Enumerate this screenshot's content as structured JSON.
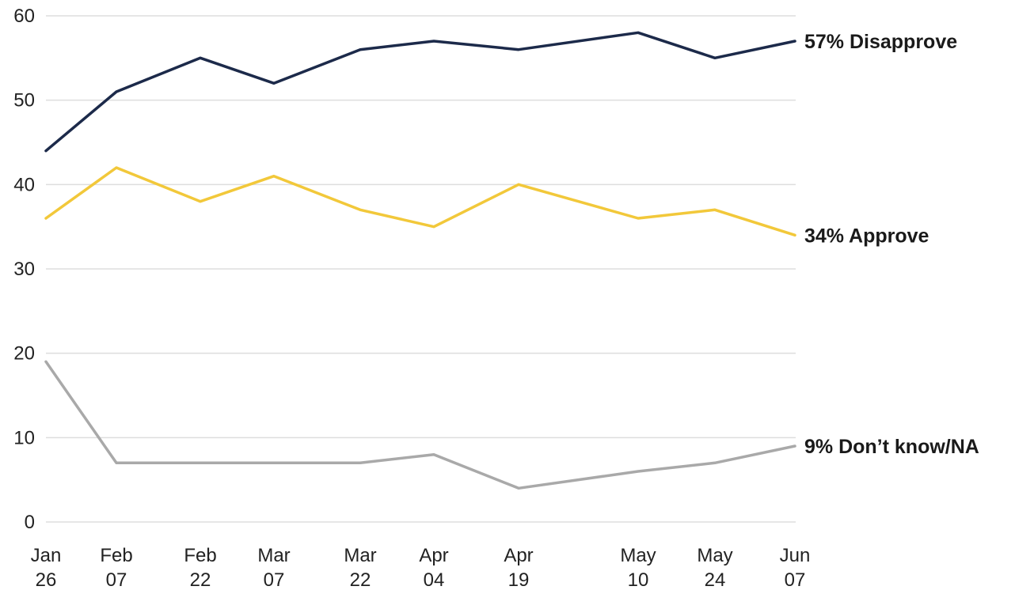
{
  "chart_data": {
    "type": "line",
    "categories": [
      [
        "Jan",
        "26"
      ],
      [
        "Feb",
        "07"
      ],
      [
        "Feb",
        "22"
      ],
      [
        "Mar",
        "07"
      ],
      [
        "Mar",
        "22"
      ],
      [
        "Apr",
        "04"
      ],
      [
        "Apr",
        "19"
      ],
      [
        "May",
        "10"
      ],
      [
        "May",
        "24"
      ],
      [
        "Jun",
        "07"
      ]
    ],
    "x": [
      "2025-01-26",
      "2025-02-07",
      "2025-02-22",
      "2025-03-07",
      "2025-03-22",
      "2025-04-04",
      "2025-04-19",
      "2025-05-10",
      "2025-05-24",
      "2025-06-07"
    ],
    "y_ticks": [
      "0",
      "10",
      "20",
      "30",
      "40",
      "50",
      "60"
    ],
    "ylim": [
      0,
      60
    ],
    "grid": true,
    "series": [
      {
        "key": "disapprove",
        "color": "#1c2a4a",
        "values": [
          44,
          51,
          55,
          52,
          56,
          57,
          56,
          58,
          55,
          57
        ],
        "end_label": "57% Disapprove"
      },
      {
        "key": "approve",
        "color": "#f2c83a",
        "values": [
          36,
          42,
          38,
          41,
          37,
          35,
          40,
          36,
          37,
          34
        ],
        "end_label": "34% Approve"
      },
      {
        "key": "dont-know",
        "color": "#a9a9a9",
        "values": [
          19,
          7,
          7,
          7,
          7,
          8,
          4,
          6,
          7,
          9
        ],
        "end_label": "9% Don’t know/NA"
      }
    ]
  }
}
